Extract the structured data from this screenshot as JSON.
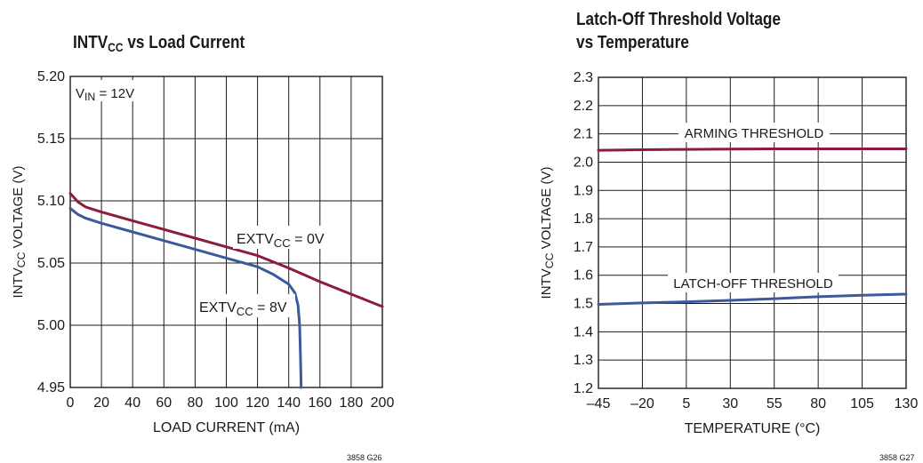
{
  "chart_data": [
    {
      "type": "line",
      "title_main": "INTV",
      "title_sub": "CC",
      "title_rest": " vs Load Current",
      "xlabel": "LOAD CURRENT (mA)",
      "ylabel_main": "INTV",
      "ylabel_sub": "CC",
      "ylabel_rest": " VOLTAGE (V)",
      "xlim": [
        0,
        200
      ],
      "ylim": [
        4.95,
        5.2
      ],
      "x_ticks": [
        "0",
        "20",
        "40",
        "60",
        "80",
        "100",
        "120",
        "140",
        "160",
        "180",
        "200"
      ],
      "y_ticks": [
        "4.95",
        "5.00",
        "5.05",
        "5.10",
        "5.15",
        "5.20"
      ],
      "grid": true,
      "condition": {
        "main": "V",
        "sub": "IN",
        "rest": " = 12V"
      },
      "series": [
        {
          "name_main": "EXTV",
          "name_sub": "CC",
          "name_rest": " = 0V",
          "color": "#8c1c3a",
          "x": [
            0,
            5,
            10,
            20,
            40,
            60,
            80,
            100,
            120,
            140,
            160,
            180,
            200
          ],
          "y": [
            5.106,
            5.099,
            5.095,
            5.091,
            5.084,
            5.077,
            5.07,
            5.063,
            5.056,
            5.046,
            5.035,
            5.025,
            5.015
          ]
        },
        {
          "name_main": "EXTV",
          "name_sub": "CC",
          "name_rest": " = 8V",
          "color": "#3a5a9c",
          "x": [
            0,
            5,
            10,
            20,
            40,
            60,
            80,
            100,
            120,
            130,
            140,
            144,
            146,
            147,
            147.5,
            148
          ],
          "y": [
            5.094,
            5.089,
            5.086,
            5.082,
            5.075,
            5.068,
            5.061,
            5.054,
            5.047,
            5.041,
            5.033,
            5.026,
            5.016,
            5.0,
            4.975,
            4.95
          ]
        }
      ],
      "figure_code": "3858 G26"
    },
    {
      "type": "line",
      "title_line1": "Latch-Off Threshold Voltage",
      "title_line2": "vs Temperature",
      "xlabel": "TEMPERATURE (°C)",
      "ylabel_main": "INTV",
      "ylabel_sub": "CC",
      "ylabel_rest": " VOLTAGE (V)",
      "xlim": [
        -45,
        130
      ],
      "ylim": [
        1.2,
        2.3
      ],
      "x_ticks": [
        "–45",
        "–20",
        "5",
        "30",
        "55",
        "80",
        "105",
        "130"
      ],
      "y_ticks": [
        "1.2",
        "1.3",
        "1.4",
        "1.5",
        "1.6",
        "1.7",
        "1.8",
        "1.9",
        "2.0",
        "2.1",
        "2.2",
        "2.3"
      ],
      "grid": true,
      "series": [
        {
          "name": "ARMING THRESHOLD",
          "color": "#8c1c3a",
          "x": [
            -45,
            -20,
            5,
            30,
            55,
            80,
            105,
            130
          ],
          "y": [
            2.042,
            2.044,
            2.045,
            2.046,
            2.047,
            2.047,
            2.047,
            2.047
          ]
        },
        {
          "name": "LATCH-OFF THRESHOLD",
          "color": "#3a5a9c",
          "x": [
            -45,
            -20,
            5,
            30,
            55,
            80,
            105,
            130
          ],
          "y": [
            1.497,
            1.502,
            1.506,
            1.511,
            1.517,
            1.524,
            1.529,
            1.533
          ]
        }
      ],
      "figure_code": "3858 G27"
    }
  ]
}
